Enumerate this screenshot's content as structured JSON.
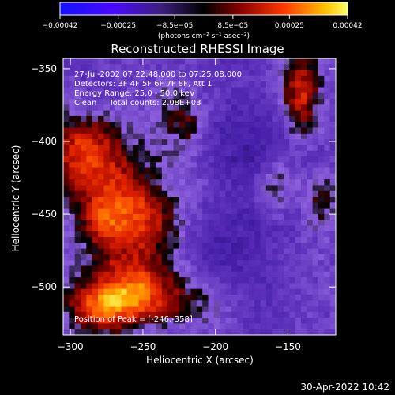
{
  "chart_data": {
    "type": "heatmap",
    "title": "Reconstructed RHESSI Image",
    "xlabel": "Heliocentric X (arcsec)",
    "ylabel": "Heliocentric Y (arcsec)",
    "xlim": [
      -305,
      -117
    ],
    "ylim": [
      -533,
      -343
    ],
    "x_ticks": [
      -300,
      -250,
      -200,
      -150
    ],
    "y_ticks": [
      -350,
      -400,
      -450,
      -500
    ],
    "x_tick_labels": [
      "−300",
      "−250",
      "−200",
      "−150"
    ],
    "y_tick_labels": [
      "−350",
      "−400",
      "−450",
      "−500"
    ],
    "colorbar": {
      "ticks": [
        -0.00042,
        -0.00025,
        -8.5e-05,
        8.5e-05,
        0.00025,
        0.00042
      ],
      "tick_labels": [
        "−0.00042",
        "−0.00025",
        "−8.5e−05",
        "8.5e−05",
        "0.00025",
        "0.00042"
      ],
      "unit_label": "(photons cm⁻² s⁻¹ asec⁻²)",
      "range": [
        -0.00042,
        0.00042
      ]
    },
    "annotations": {
      "time_range": "27-Jul-2002 07:22:48.000 to 07:25:08.000",
      "detectors": "Detectors: 3F 4F 5F 6F 7F 8F, Att 1",
      "energy_range": "Energy Range: 25.0 - 50.0 keV",
      "clean_counts": "Clean     Total counts: 2.08E+03",
      "position_of_peak": "Position of Peak = [-246,-358]"
    },
    "footer_timestamp": "30-Apr-2022 10:42",
    "grid": false
  }
}
